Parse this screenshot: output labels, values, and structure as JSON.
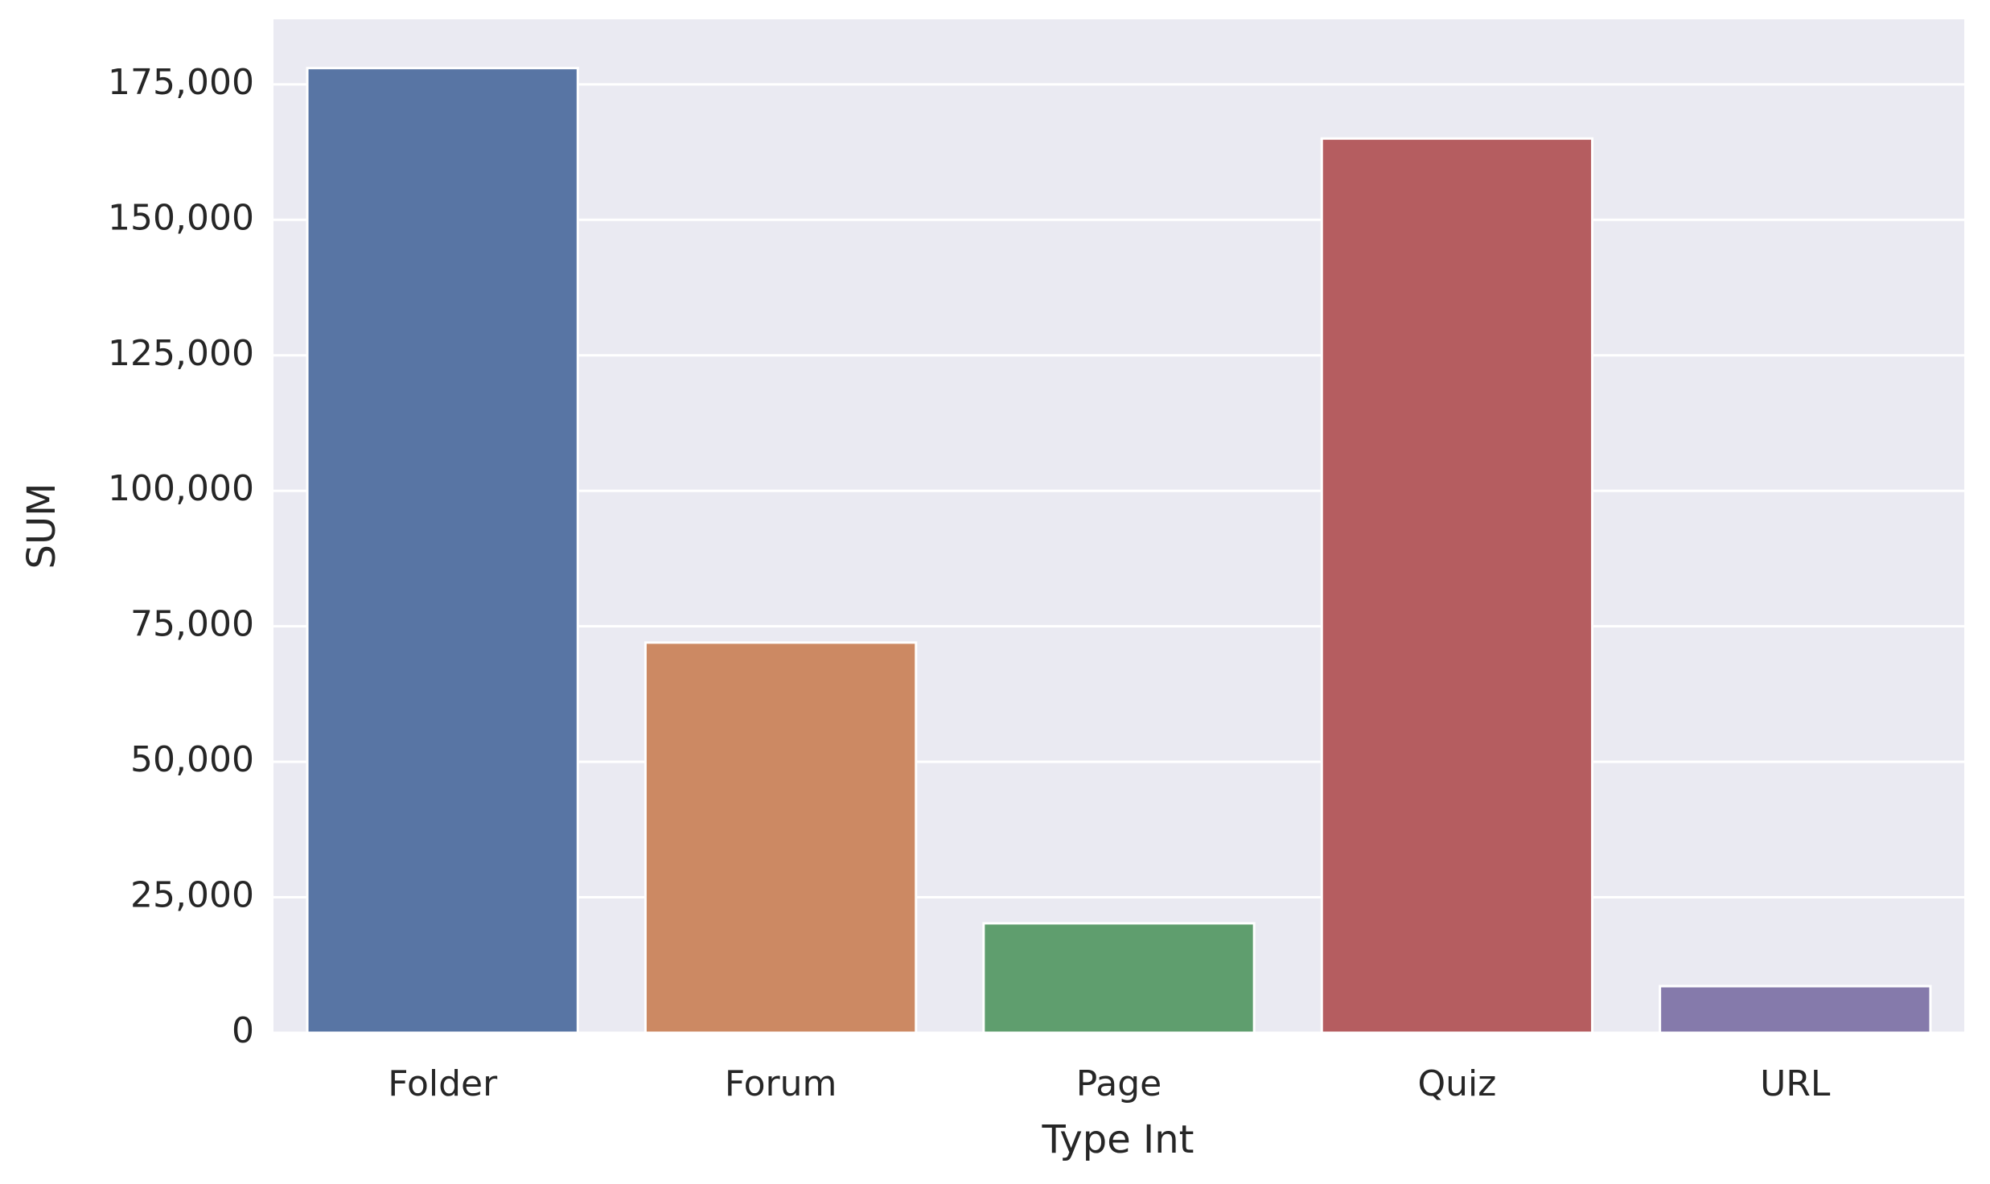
{
  "chart_data": {
    "type": "bar",
    "x_label": "Type Int",
    "y_label": "SUM",
    "categories": [
      "Folder",
      "Forum",
      "Page",
      "Quiz",
      "URL"
    ],
    "values": [
      178000,
      72000,
      20200,
      165000,
      8600
    ],
    "colors": [
      "#5875a4",
      "#cc8963",
      "#5f9e6e",
      "#b55d60",
      "#857aab"
    ],
    "ylim": [
      0,
      187000
    ],
    "yticks": [
      0,
      {
        "value": 25000,
        "label": "25,000"
      },
      {
        "value": 50000,
        "label": "50,000"
      },
      {
        "value": 75000,
        "label": "75,000"
      },
      {
        "value": 100000,
        "label": "100,000"
      },
      {
        "value": 125000,
        "label": "125,000"
      },
      {
        "value": 150000,
        "label": "150,000"
      },
      {
        "value": 175000,
        "label": "175,000"
      }
    ],
    "grid": true
  }
}
